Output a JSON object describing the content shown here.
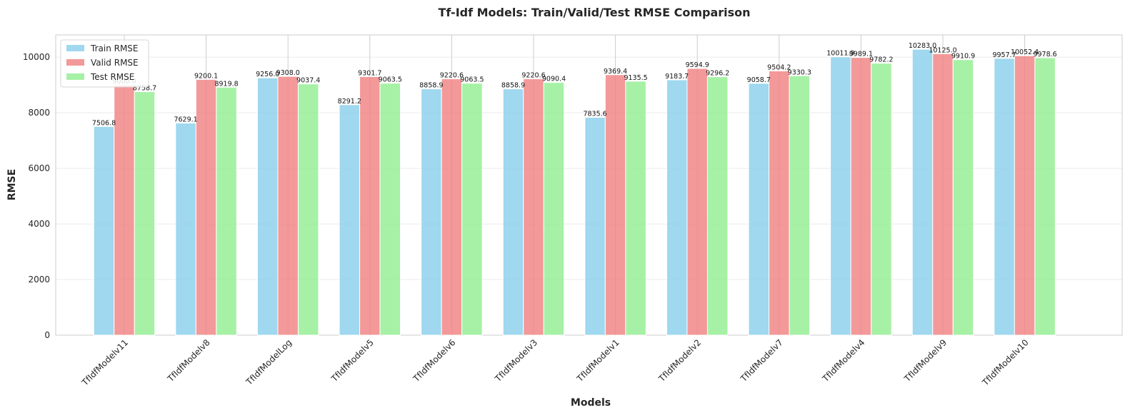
{
  "chart_data": {
    "type": "bar",
    "title": "Tf-Idf Models: Train/Valid/Test RMSE Comparison",
    "xlabel": "Models",
    "ylabel": "RMSE",
    "ylim": [
      0,
      10800
    ],
    "yticks": [
      0,
      2000,
      4000,
      6000,
      8000,
      10000
    ],
    "grid": true,
    "legend_position": "top-left",
    "categories": [
      "TfIdfModelv11",
      "TfIdfModelv8",
      "TfIdfModelLog",
      "TfIdfModelv5",
      "TfIdfModelv6",
      "TfIdfModelv3",
      "TfIdfModelv1",
      "TfIdfModelv2",
      "TfIdfModelv7",
      "TfIdfModelv4",
      "TfIdfModelv9",
      "TfIdfModelv10"
    ],
    "series": [
      {
        "name": "Train RMSE",
        "color": "#87CEEB",
        "values": [
          7506.8,
          7629.1,
          9256.0,
          8291.2,
          8858.9,
          8858.9,
          7835.6,
          9183.7,
          9058.7,
          10011.9,
          10283.0,
          9957.7
        ]
      },
      {
        "name": "Valid RMSE",
        "color": "#F08080",
        "values": [
          9000.0,
          9200.1,
          9308.0,
          9301.7,
          9220.6,
          9220.6,
          9369.4,
          9594.9,
          9504.2,
          9989.1,
          10125.0,
          10052.4
        ]
      },
      {
        "name": "Test RMSE",
        "color": "#90EE90",
        "values": [
          8758.7,
          8919.8,
          9037.4,
          9063.5,
          9063.5,
          9090.4,
          9135.5,
          9296.2,
          9330.3,
          9782.2,
          9910.9,
          9978.6
        ]
      }
    ]
  }
}
